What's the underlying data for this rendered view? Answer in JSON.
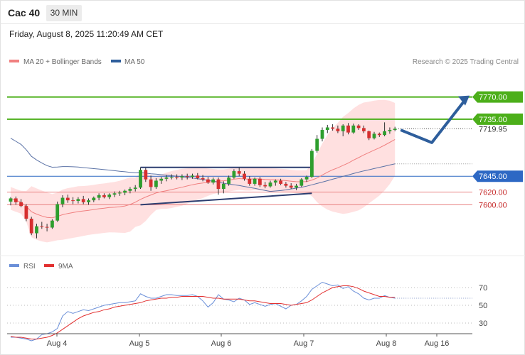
{
  "header": {
    "title": "Cac 40",
    "timeframe": "30 MIN"
  },
  "timestamp": "Friday, August 8, 2025 11:20:49 AM CET",
  "legend": {
    "ma20": "MA 20 + Bollinger Bands",
    "ma50": "MA 50",
    "credit": "Research © 2025 Trading Central"
  },
  "rsi_legend": {
    "rsi": "RSI",
    "ma9": "9MA"
  },
  "colors": {
    "bollinger": "#ffd6d6",
    "ma20": "#f08080",
    "ma50": "#5b72a6",
    "green_level": "#4caf1a",
    "blue_level": "#2d68c4",
    "red_level": "#e88080",
    "bull": "#2e9e2e",
    "bear": "#d62f2f",
    "arrow": "#2e5e9c",
    "rsi": "#6a8fd8",
    "rsi_ma": "#e23030"
  },
  "chart_data": [
    {
      "type": "candlestick",
      "title": "Cac 40",
      "price_range": [
        7522,
        7820
      ],
      "current_price": "7719.95",
      "levels": [
        {
          "value": 7770,
          "label": "7770.00",
          "style": "resistance"
        },
        {
          "value": 7735,
          "label": "7735.00",
          "style": "resistance"
        },
        {
          "value": 7645,
          "label": "7645.00",
          "style": "pivot"
        },
        {
          "value": 7620,
          "label": "7620.00",
          "style": "support"
        },
        {
          "value": 7600,
          "label": "7600.00",
          "style": "support"
        }
      ],
      "x_ticks": [
        "Aug 4",
        "Aug 5",
        "Aug 6",
        "Aug 7",
        "Aug 8",
        "Aug 16"
      ],
      "candles": [
        [
          7605,
          7612,
          7599,
          7610
        ],
        [
          7610,
          7613,
          7600,
          7604
        ],
        [
          7604,
          7609,
          7596,
          7598
        ],
        [
          7598,
          7601,
          7574,
          7578
        ],
        [
          7578,
          7581,
          7552,
          7555
        ],
        [
          7555,
          7570,
          7547,
          7566
        ],
        [
          7566,
          7573,
          7562,
          7565
        ],
        [
          7565,
          7570,
          7558,
          7564
        ],
        [
          7564,
          7577,
          7562,
          7575
        ],
        [
          7575,
          7605,
          7573,
          7601
        ],
        [
          7601,
          7615,
          7596,
          7611
        ],
        [
          7611,
          7616,
          7603,
          7607
        ],
        [
          7607,
          7612,
          7601,
          7606
        ],
        [
          7606,
          7612,
          7602,
          7609
        ],
        [
          7609,
          7614,
          7601,
          7604
        ],
        [
          7604,
          7610,
          7600,
          7607
        ],
        [
          7607,
          7613,
          7604,
          7611
        ],
        [
          7611,
          7618,
          7607,
          7615
        ],
        [
          7615,
          7618,
          7610,
          7612
        ],
        [
          7612,
          7618,
          7609,
          7616
        ],
        [
          7616,
          7621,
          7612,
          7618
        ],
        [
          7618,
          7622,
          7614,
          7619
        ],
        [
          7619,
          7624,
          7615,
          7622
        ],
        [
          7622,
          7628,
          7618,
          7625
        ],
        [
          7625,
          7631,
          7621,
          7627
        ],
        [
          7627,
          7659,
          7625,
          7655
        ],
        [
          7655,
          7658,
          7636,
          7640
        ],
        [
          7640,
          7646,
          7622,
          7628
        ],
        [
          7628,
          7642,
          7625,
          7638
        ],
        [
          7638,
          7644,
          7633,
          7641
        ],
        [
          7641,
          7647,
          7637,
          7643
        ],
        [
          7643,
          7648,
          7640,
          7644
        ],
        [
          7644,
          7648,
          7640,
          7643
        ],
        [
          7643,
          7648,
          7639,
          7645
        ],
        [
          7645,
          7649,
          7640,
          7644
        ],
        [
          7644,
          7649,
          7641,
          7646
        ],
        [
          7646,
          7650,
          7640,
          7642
        ],
        [
          7642,
          7647,
          7637,
          7640
        ],
        [
          7640,
          7644,
          7633,
          7635
        ],
        [
          7635,
          7643,
          7632,
          7640
        ],
        [
          7640,
          7643,
          7616,
          7625
        ],
        [
          7625,
          7637,
          7618,
          7633
        ],
        [
          7633,
          7646,
          7630,
          7643
        ],
        [
          7643,
          7656,
          7641,
          7653
        ],
        [
          7653,
          7659,
          7645,
          7649
        ],
        [
          7649,
          7653,
          7638,
          7641
        ],
        [
          7641,
          7645,
          7630,
          7633
        ],
        [
          7633,
          7643,
          7630,
          7641
        ],
        [
          7641,
          7644,
          7628,
          7631
        ],
        [
          7631,
          7636,
          7626,
          7629
        ],
        [
          7629,
          7638,
          7627,
          7635
        ],
        [
          7635,
          7640,
          7630,
          7638
        ],
        [
          7638,
          7641,
          7631,
          7633
        ],
        [
          7633,
          7636,
          7627,
          7630
        ],
        [
          7630,
          7634,
          7625,
          7627
        ],
        [
          7627,
          7633,
          7623,
          7630
        ],
        [
          7630,
          7642,
          7628,
          7640
        ],
        [
          7640,
          7646,
          7636,
          7644
        ],
        [
          7644,
          7688,
          7642,
          7685
        ],
        [
          7685,
          7710,
          7682,
          7704
        ],
        [
          7704,
          7722,
          7700,
          7718
        ],
        [
          7718,
          7726,
          7713,
          7722
        ],
        [
          7722,
          7727,
          7717,
          7720
        ],
        [
          7720,
          7725,
          7713,
          7716
        ],
        [
          7716,
          7727,
          7708,
          7725
        ],
        [
          7725,
          7729,
          7711,
          7714
        ],
        [
          7714,
          7728,
          7712,
          7725
        ],
        [
          7725,
          7727,
          7718,
          7721
        ],
        [
          7721,
          7725,
          7713,
          7716
        ],
        [
          7716,
          7717,
          7702,
          7705
        ],
        [
          7705,
          7715,
          7703,
          7712
        ],
        [
          7712,
          7714,
          7707,
          7710
        ],
        [
          7710,
          7730,
          7708,
          7716
        ],
        [
          7716,
          7722,
          7712,
          7718
        ],
        [
          7718,
          7723,
          7716,
          7720
        ]
      ],
      "forecast_path": [
        7718,
        7698,
        7770
      ],
      "trendlines": [
        {
          "from": [
            25,
            7659
          ],
          "to": [
            58,
            7659
          ]
        },
        {
          "from": [
            25,
            7600
          ],
          "to": [
            58,
            7618
          ]
        }
      ]
    },
    {
      "type": "line",
      "title": "RSI",
      "ylim": [
        10,
        90
      ],
      "y_ticks": [
        70,
        50,
        30
      ],
      "series": [
        {
          "name": "RSI",
          "values": [
            14,
            14,
            13,
            12,
            10,
            12,
            17,
            18,
            20,
            24,
            38,
            43,
            41,
            43,
            45,
            44,
            46,
            48,
            50,
            51,
            52,
            53,
            53,
            54,
            55,
            63,
            60,
            58,
            58,
            60,
            62,
            62,
            61,
            61,
            61,
            62,
            60,
            55,
            48,
            53,
            62,
            57,
            56,
            54,
            58,
            56,
            51,
            53,
            51,
            49,
            51,
            52,
            49,
            46,
            50,
            51,
            55,
            60,
            68,
            72,
            76,
            74,
            72,
            73,
            69,
            71,
            66,
            63,
            58,
            56,
            58,
            58,
            61,
            59,
            58
          ]
        },
        {
          "name": "9MA",
          "values": [
            15,
            14,
            14,
            13,
            12,
            12,
            13,
            14,
            16,
            19,
            23,
            27,
            31,
            35,
            38,
            40,
            42,
            43,
            45,
            46,
            48,
            49,
            50,
            51,
            52,
            53,
            55,
            56,
            57,
            58,
            58,
            59,
            59,
            60,
            60,
            60,
            60,
            60,
            59,
            58,
            58,
            57,
            57,
            57,
            57,
            56,
            55,
            55,
            54,
            53,
            52,
            52,
            52,
            51,
            50,
            51,
            52,
            53,
            56,
            60,
            64,
            67,
            70,
            71,
            72,
            72,
            71,
            69,
            66,
            64,
            62,
            60,
            60,
            59,
            59
          ]
        }
      ]
    }
  ]
}
